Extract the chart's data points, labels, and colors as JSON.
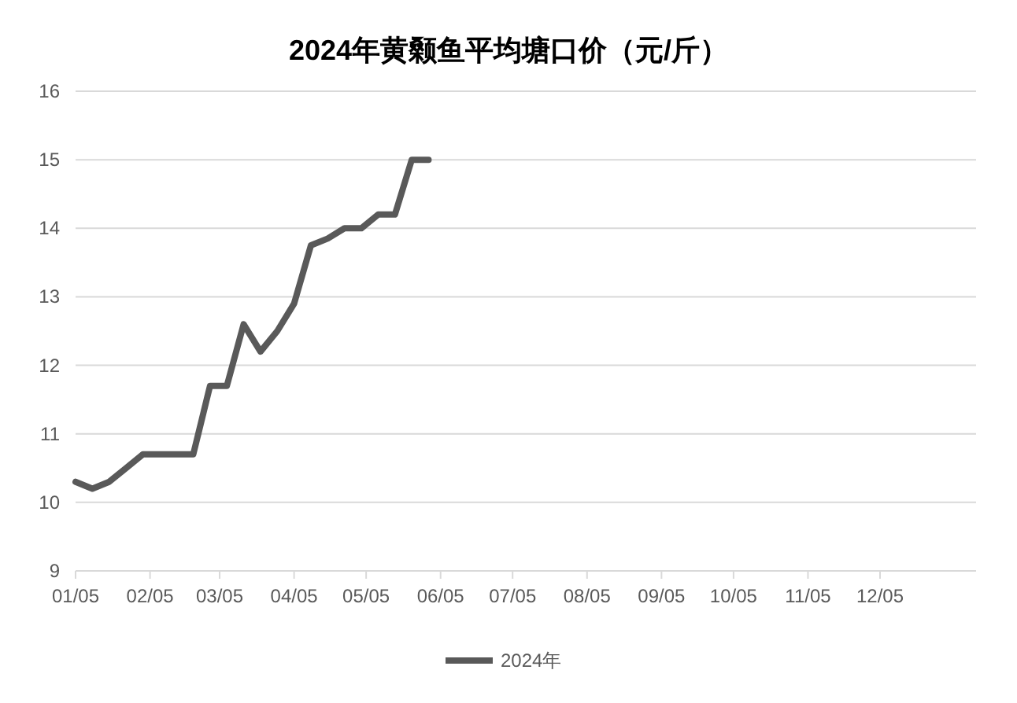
{
  "chart_data": {
    "type": "line",
    "title": "2024年黄颡鱼平均塘口价（元/斤）",
    "x": [
      "2024-01-05",
      "2024-01-12",
      "2024-01-19",
      "2024-01-26",
      "2024-02-02",
      "2024-02-09",
      "2024-02-16",
      "2024-02-23",
      "2024-03-01",
      "2024-03-08",
      "2024-03-15",
      "2024-03-22",
      "2024-03-29",
      "2024-04-05",
      "2024-04-12",
      "2024-04-19",
      "2024-04-26",
      "2024-05-03",
      "2024-05-10",
      "2024-05-17",
      "2024-05-24",
      "2024-05-31"
    ],
    "series": [
      {
        "name": "2024年",
        "color": "#595959",
        "values": [
          10.3,
          10.2,
          10.3,
          10.5,
          10.7,
          10.7,
          10.7,
          10.7,
          11.7,
          11.7,
          12.6,
          12.2,
          12.5,
          12.9,
          13.75,
          13.85,
          14,
          14,
          14.2,
          14.2,
          15,
          15
        ]
      }
    ],
    "xlim": [
      "2024-01-05",
      "2025-01-14"
    ],
    "xticks": [
      {
        "value": "2024-01-05",
        "label": "01/05"
      },
      {
        "value": "2024-02-05",
        "label": "02/05"
      },
      {
        "value": "2024-03-05",
        "label": "03/05"
      },
      {
        "value": "2024-04-05",
        "label": "04/05"
      },
      {
        "value": "2024-05-05",
        "label": "05/05"
      },
      {
        "value": "2024-06-05",
        "label": "06/05"
      },
      {
        "value": "2024-07-05",
        "label": "07/05"
      },
      {
        "value": "2024-08-05",
        "label": "08/05"
      },
      {
        "value": "2024-09-05",
        "label": "09/05"
      },
      {
        "value": "2024-10-05",
        "label": "10/05"
      },
      {
        "value": "2024-11-05",
        "label": "11/05"
      },
      {
        "value": "2024-12-05",
        "label": "12/05"
      }
    ],
    "ylim": [
      9,
      16
    ],
    "yticks": [
      9,
      10,
      11,
      12,
      13,
      14,
      15,
      16
    ],
    "grid": "y",
    "legend": "bottom",
    "marker": "none",
    "line_style": "solid"
  }
}
